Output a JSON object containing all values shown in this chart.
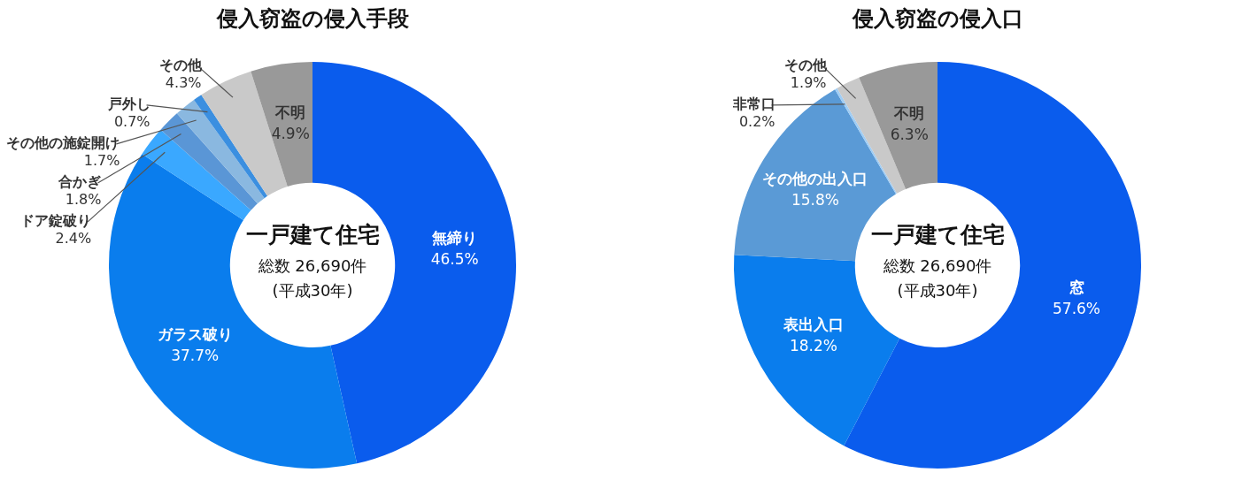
{
  "chart_data": [
    {
      "type": "donut",
      "title": "侵入窃盗の侵入手段",
      "categories": [
        "無締り",
        "ガラス破り",
        "ドア錠破り",
        "合かぎ",
        "その他の施錠開け",
        "戸外し",
        "その他",
        "不明"
      ],
      "values": [
        46.5,
        37.7,
        2.4,
        1.8,
        1.7,
        0.7,
        4.3,
        4.9
      ],
      "colors": [
        "#0a5ced",
        "#0a7ded",
        "#3aa8ff",
        "#5a96d6",
        "#8ab8e0",
        "#3b8fe0",
        "#c9c9c9",
        "#999999"
      ],
      "value_labels": [
        "46.5%",
        "37.7%",
        "2.4%",
        "1.8%",
        "1.7%",
        "0.7%",
        "4.3%",
        "4.9%"
      ],
      "annotations": [
        "一戸建て住宅",
        "総数 26,690件",
        "(平成30年)"
      ],
      "legend": false
    },
    {
      "type": "donut",
      "title": "侵入窃盗の侵入口",
      "categories": [
        "窓",
        "表出入口",
        "その他の出入口",
        "非常口",
        "その他",
        "不明"
      ],
      "values": [
        57.6,
        18.2,
        15.8,
        0.2,
        1.9,
        6.3
      ],
      "colors": [
        "#0a5ced",
        "#0a7ded",
        "#5a9ad6",
        "#9fcdf5",
        "#c9c9c9",
        "#999999"
      ],
      "value_labels": [
        "57.6%",
        "18.2%",
        "15.8%",
        "0.2%",
        "1.9%",
        "6.3%"
      ],
      "annotations": [
        "一戸建て住宅",
        "総数 26,690件",
        "(平成30年)"
      ],
      "legend": false
    }
  ]
}
